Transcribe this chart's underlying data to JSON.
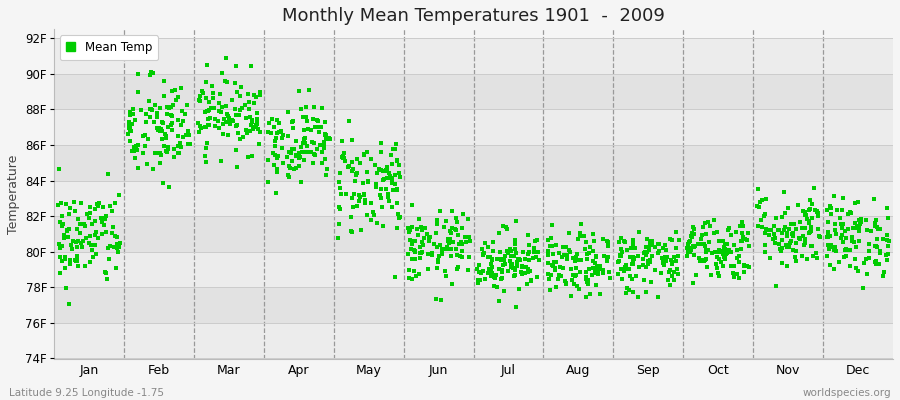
{
  "title": "Monthly Mean Temperatures 1901  -  2009",
  "ylabel": "Temperature",
  "ylim": [
    74,
    92.5
  ],
  "yticks": [
    74,
    76,
    78,
    80,
    82,
    84,
    86,
    88,
    90,
    92
  ],
  "ytick_labels": [
    "74F",
    "76F",
    "78F",
    "80F",
    "82F",
    "84F",
    "86F",
    "88F",
    "90F",
    "92F"
  ],
  "month_labels": [
    "Jan",
    "Feb",
    "Mar",
    "Apr",
    "May",
    "Jun",
    "Jul",
    "Aug",
    "Sep",
    "Oct",
    "Nov",
    "Dec"
  ],
  "legend_label": "Mean Temp",
  "dot_color": "#00CC00",
  "background_color": "#f5f5f5",
  "band_color_light": "#f0f0f0",
  "band_color_dark": "#e0e0e0",
  "footer_left": "Latitude 9.25 Longitude -1.75",
  "footer_right": "worldspecies.org",
  "n_years": 109,
  "monthly_means": [
    80.8,
    86.8,
    87.8,
    86.2,
    83.8,
    80.2,
    79.5,
    79.2,
    79.5,
    80.2,
    81.2,
    80.8
  ],
  "monthly_stds": [
    1.4,
    1.5,
    1.1,
    1.1,
    1.5,
    1.0,
    0.9,
    0.9,
    0.9,
    0.9,
    1.1,
    1.1
  ],
  "seed": 42
}
